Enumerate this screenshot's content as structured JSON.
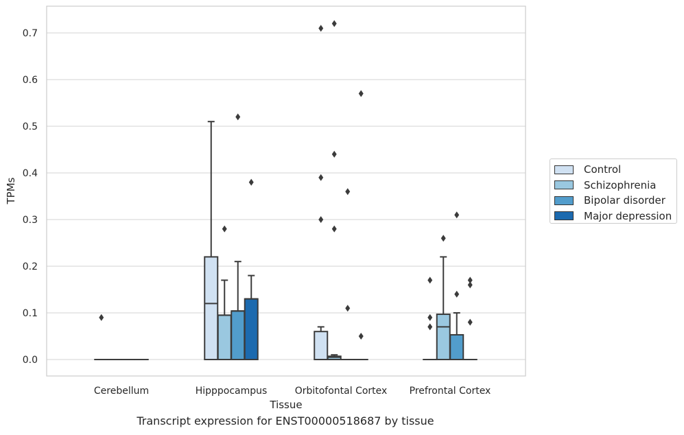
{
  "chart_data": {
    "type": "boxplot",
    "xlabel": "Tissue",
    "ylabel": "TPMs",
    "caption": "Transcript expression for ENST00000518687 by tissue",
    "ylim": [
      -0.035,
      0.76
    ],
    "yticks": [
      "0.0",
      "0.1",
      "0.2",
      "0.3",
      "0.4",
      "0.5",
      "0.6",
      "0.7"
    ],
    "ytick_values": [
      0,
      0.1,
      0.2,
      0.3,
      0.4,
      0.5,
      0.6,
      0.7
    ],
    "grid": "horizontal",
    "legend_position": "right",
    "categories": [
      "Cerebellum",
      "Hipppocampus",
      "Orbitofontal Cortex",
      "Prefrontal Cortex"
    ],
    "series": [
      {
        "name": "Control",
        "color": "#d0e1f2",
        "boxes": [
          {
            "q1": 0,
            "median": 0,
            "q3": 0,
            "whisker_low": 0,
            "whisker_high": 0,
            "outliers": [
              0.09
            ]
          },
          {
            "q1": 0,
            "median": 0.12,
            "q3": 0.22,
            "whisker_low": 0,
            "whisker_high": 0.51,
            "outliers": []
          },
          {
            "q1": 0,
            "median": 0,
            "q3": 0.06,
            "whisker_low": 0,
            "whisker_high": 0.07,
            "outliers": [
              0.71,
              0.39,
              0.3
            ]
          },
          {
            "q1": 0,
            "median": 0,
            "q3": 0,
            "whisker_low": 0,
            "whisker_high": 0,
            "outliers": [
              0.17,
              0.09,
              0.07
            ]
          }
        ]
      },
      {
        "name": "Schizophrenia",
        "color": "#9ac8e0",
        "boxes": [
          {
            "q1": 0,
            "median": 0,
            "q3": 0,
            "whisker_low": 0,
            "whisker_high": 0,
            "outliers": []
          },
          {
            "q1": 0,
            "median": 0.095,
            "q3": 0.095,
            "whisker_low": 0,
            "whisker_high": 0.17,
            "outliers": [
              0.28
            ]
          },
          {
            "q1": 0,
            "median": 0.005,
            "q3": 0.007,
            "whisker_low": 0,
            "whisker_high": 0.01,
            "outliers": [
              0.72,
              0.44,
              0.28
            ]
          },
          {
            "q1": 0,
            "median": 0.07,
            "q3": 0.097,
            "whisker_low": 0,
            "whisker_high": 0.22,
            "outliers": [
              0.26
            ]
          }
        ]
      },
      {
        "name": "Bipolar disorder",
        "color": "#529dcc",
        "boxes": [
          {
            "q1": 0,
            "median": 0,
            "q3": 0,
            "whisker_low": 0,
            "whisker_high": 0,
            "outliers": []
          },
          {
            "q1": 0,
            "median": 0.104,
            "q3": 0.104,
            "whisker_low": 0,
            "whisker_high": 0.21,
            "outliers": [
              0.52
            ]
          },
          {
            "q1": 0,
            "median": 0,
            "q3": 0,
            "whisker_low": 0,
            "whisker_high": 0,
            "outliers": [
              0.36,
              0.11
            ]
          },
          {
            "q1": 0,
            "median": 0,
            "q3": 0.053,
            "whisker_low": 0,
            "whisker_high": 0.1,
            "outliers": [
              0.31,
              0.14
            ]
          }
        ]
      },
      {
        "name": "Major depression",
        "color": "#1c6aaf",
        "boxes": [
          {
            "q1": 0,
            "median": 0,
            "q3": 0,
            "whisker_low": 0,
            "whisker_high": 0,
            "outliers": []
          },
          {
            "q1": 0,
            "median": 0.13,
            "q3": 0.13,
            "whisker_low": 0,
            "whisker_high": 0.18,
            "outliers": [
              0.38
            ]
          },
          {
            "q1": 0,
            "median": 0,
            "q3": 0,
            "whisker_low": 0,
            "whisker_high": 0,
            "outliers": [
              0.57,
              0.05
            ]
          },
          {
            "q1": 0,
            "median": 0,
            "q3": 0,
            "whisker_low": 0,
            "whisker_high": 0,
            "outliers": [
              0.17,
              0.16,
              0.08
            ]
          }
        ]
      }
    ]
  }
}
